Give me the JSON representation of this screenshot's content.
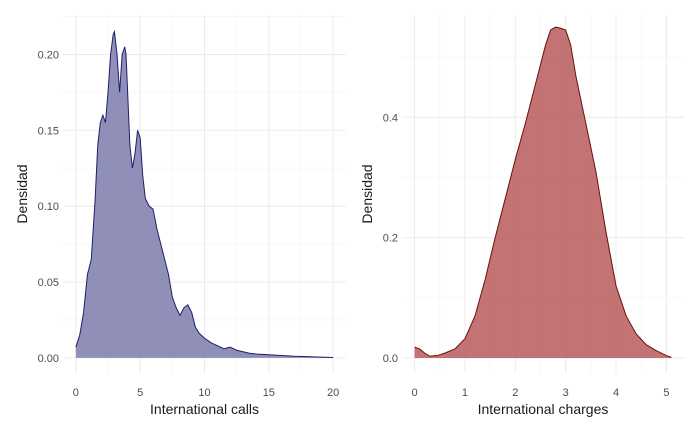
{
  "chart_data": [
    {
      "type": "area",
      "title": "",
      "xlabel": "International calls",
      "ylabel": "Densidad",
      "xlim": [
        -1,
        21
      ],
      "ylim": [
        -0.01,
        0.226
      ],
      "xticks": [
        0,
        5,
        10,
        15,
        20
      ],
      "yticks": [
        0.0,
        0.05,
        0.1,
        0.15,
        0.2
      ],
      "ytick_labels": [
        "0.00",
        "0.05",
        "0.10",
        "0.15",
        "0.20"
      ],
      "grid": true,
      "fill_color": "#7b7bab",
      "line_color": "#1f1f6b",
      "series": [
        {
          "x": [
            0,
            0.3,
            0.6,
            0.9,
            1.2,
            1.5,
            1.7,
            1.9,
            2.1,
            2.3,
            2.5,
            2.7,
            2.9,
            3.0,
            3.2,
            3.4,
            3.6,
            3.8,
            3.9,
            4.0,
            4.2,
            4.4,
            4.6,
            4.8,
            5.0,
            5.2,
            5.4,
            5.7,
            6.0,
            6.3,
            6.6,
            6.9,
            7.2,
            7.5,
            7.8,
            8.1,
            8.4,
            8.7,
            9.0,
            9.3,
            9.6,
            10.0,
            10.5,
            11.0,
            11.5,
            12.0,
            12.5,
            13.0,
            13.5,
            14.0,
            15.0,
            16.0,
            17.0,
            18.0,
            19.0,
            20.0
          ],
          "y": [
            0.007,
            0.015,
            0.03,
            0.055,
            0.065,
            0.105,
            0.14,
            0.155,
            0.16,
            0.155,
            0.175,
            0.2,
            0.213,
            0.215,
            0.2,
            0.175,
            0.2,
            0.205,
            0.2,
            0.18,
            0.14,
            0.125,
            0.135,
            0.15,
            0.145,
            0.12,
            0.105,
            0.1,
            0.098,
            0.085,
            0.075,
            0.065,
            0.055,
            0.04,
            0.033,
            0.028,
            0.033,
            0.035,
            0.03,
            0.02,
            0.016,
            0.013,
            0.01,
            0.008,
            0.006,
            0.007,
            0.005,
            0.004,
            0.003,
            0.0025,
            0.002,
            0.0015,
            0.001,
            0.0008,
            0.0005,
            0.0002
          ]
        }
      ]
    },
    {
      "type": "area",
      "title": "",
      "xlabel": "International charges",
      "ylabel": "Densidad",
      "xlim": [
        -0.25,
        5.35
      ],
      "ylim": [
        -0.025,
        0.57
      ],
      "xticks": [
        0,
        1,
        2,
        3,
        4,
        5
      ],
      "yticks": [
        0.0,
        0.2,
        0.4
      ],
      "ytick_labels": [
        "0.0",
        "0.2",
        "0.4"
      ],
      "grid": true,
      "fill_color": "#b85b5b",
      "line_color": "#6b0f0f",
      "series": [
        {
          "x": [
            0,
            0.1,
            0.2,
            0.3,
            0.45,
            0.6,
            0.8,
            1.0,
            1.2,
            1.4,
            1.6,
            1.8,
            2.0,
            2.2,
            2.4,
            2.6,
            2.7,
            2.8,
            2.9,
            3.0,
            3.1,
            3.2,
            3.4,
            3.6,
            3.8,
            4.0,
            4.2,
            4.4,
            4.6,
            4.8,
            5.0,
            5.1
          ],
          "y": [
            0.018,
            0.015,
            0.008,
            0.003,
            0.004,
            0.008,
            0.015,
            0.032,
            0.07,
            0.13,
            0.2,
            0.265,
            0.33,
            0.39,
            0.455,
            0.52,
            0.545,
            0.55,
            0.548,
            0.545,
            0.52,
            0.47,
            0.39,
            0.31,
            0.21,
            0.12,
            0.07,
            0.04,
            0.022,
            0.012,
            0.004,
            0.001
          ]
        }
      ]
    }
  ]
}
